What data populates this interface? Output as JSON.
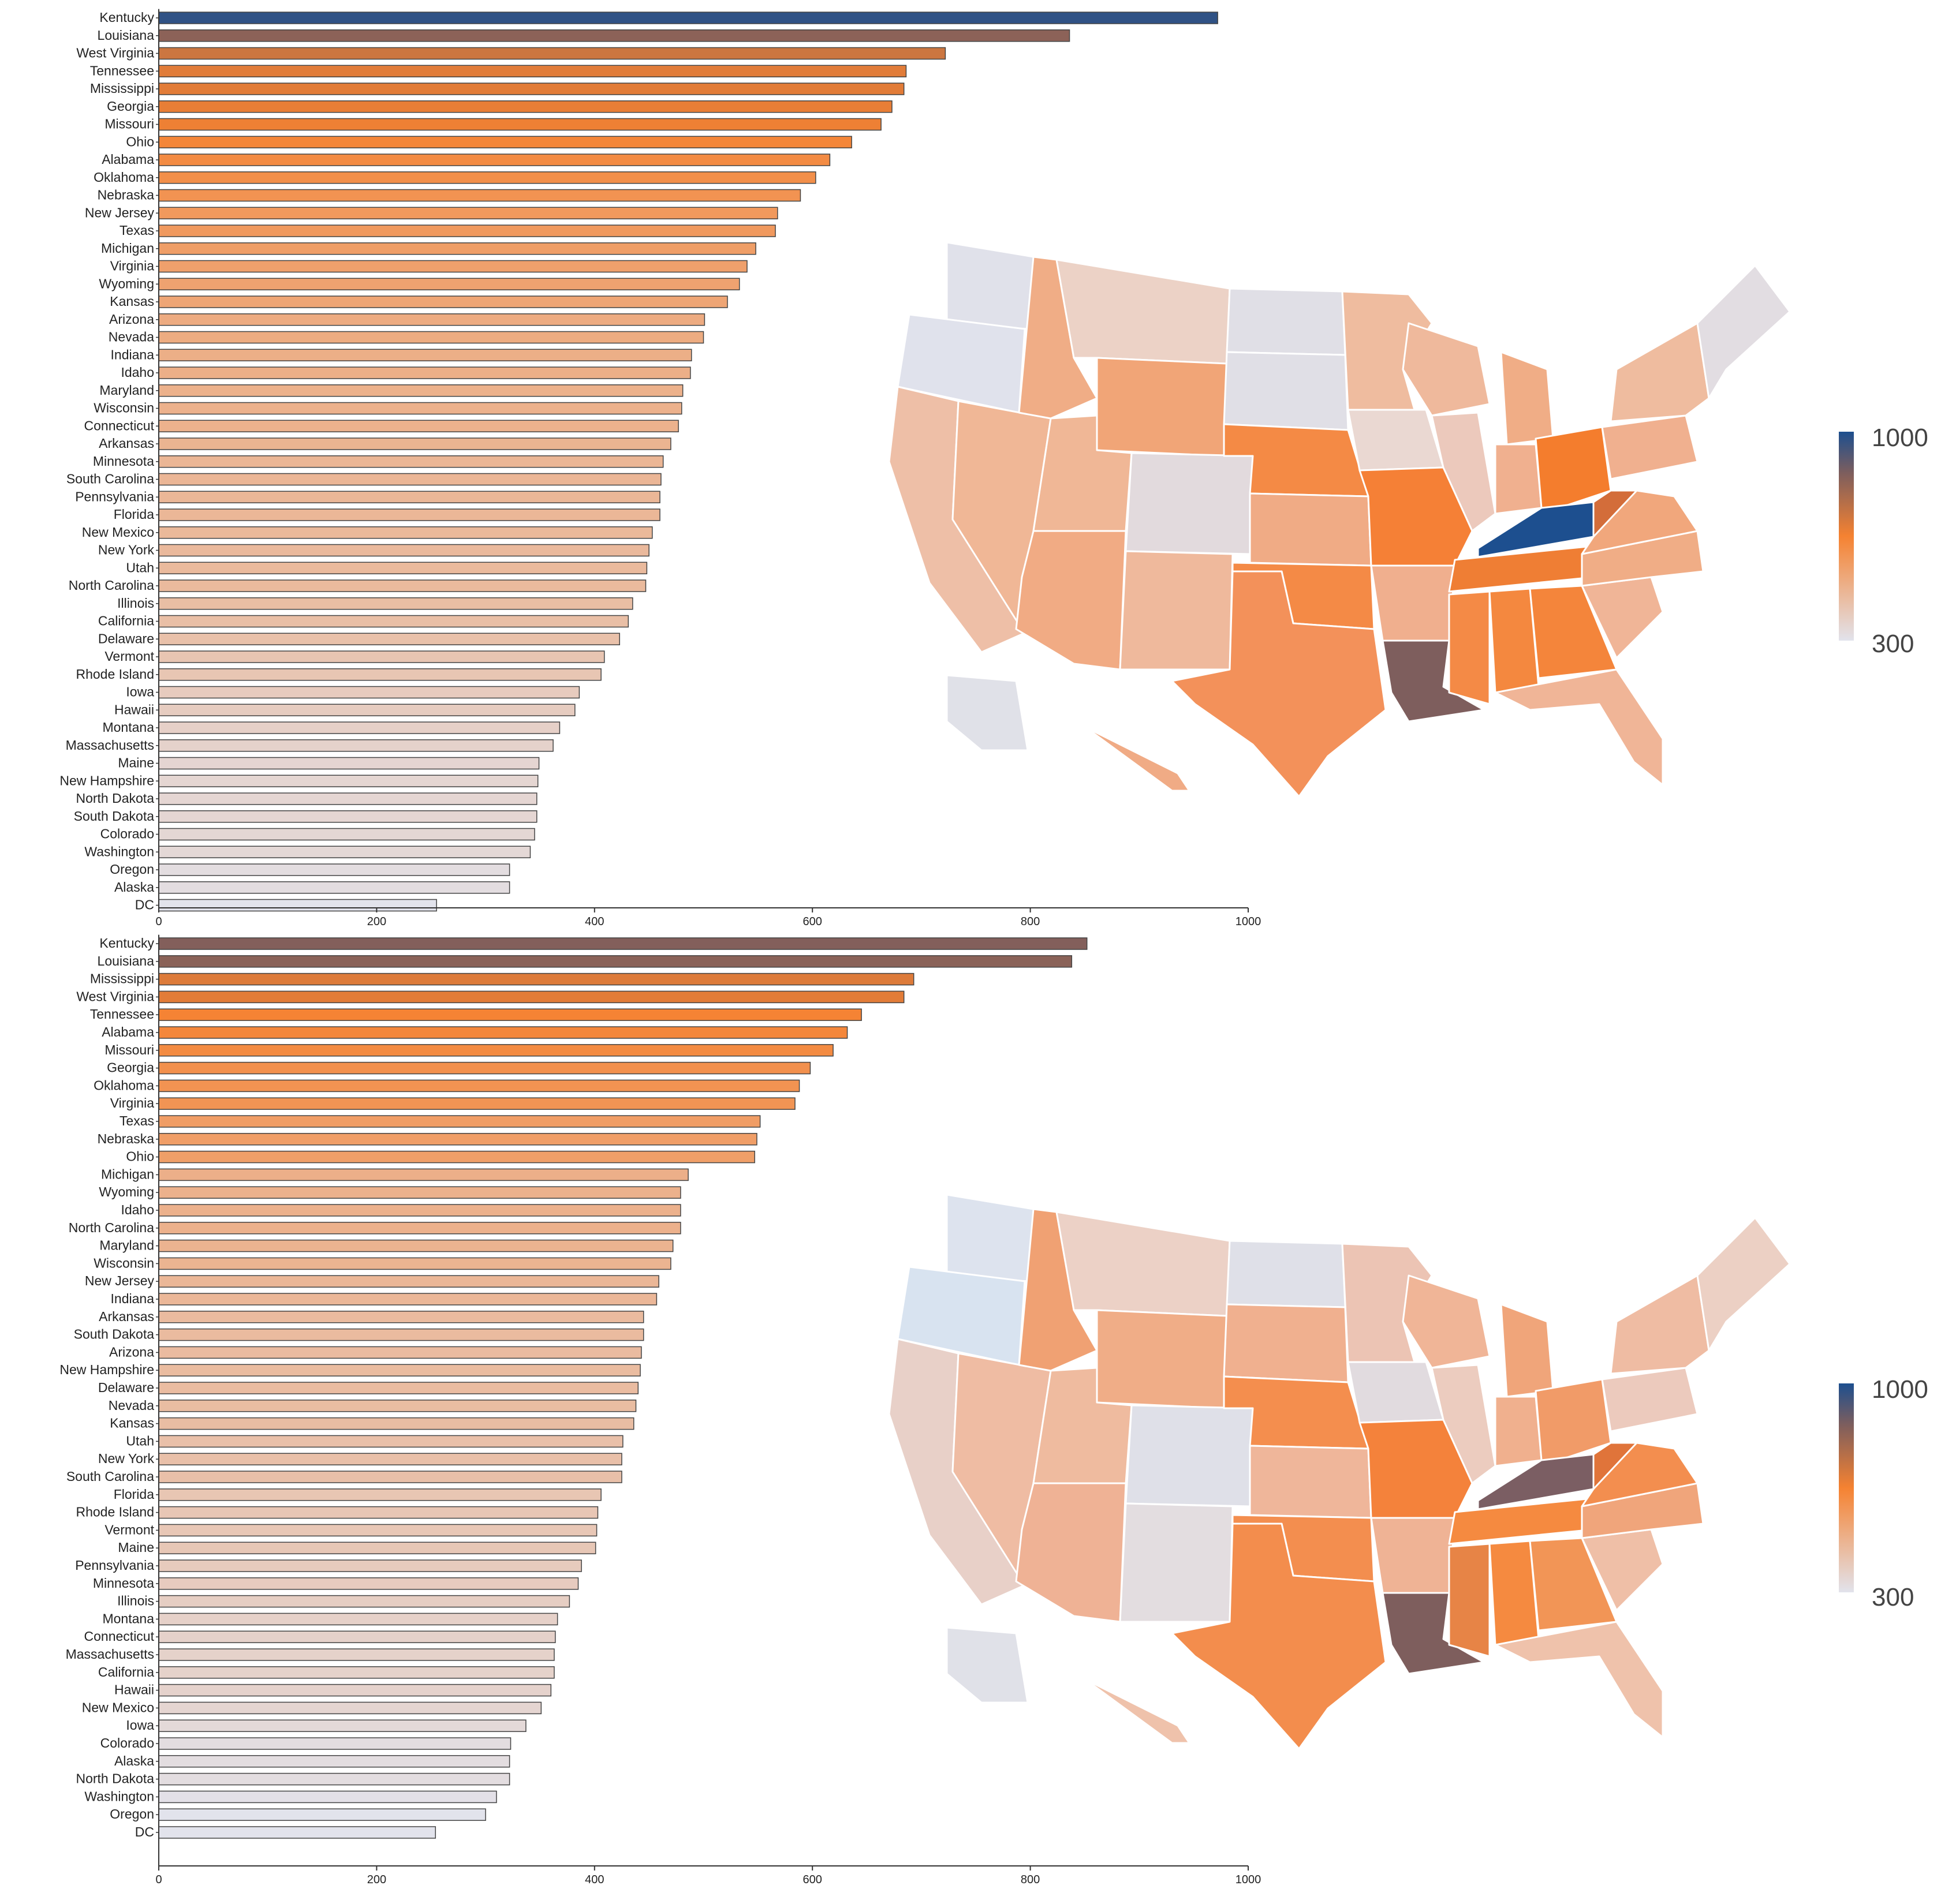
{
  "legend_colors": {
    "low": "#e2e3ec",
    "mid": "#f58231",
    "high": "#1d4f8f",
    "brown": "#7e5e5d"
  },
  "chart_data": [
    {
      "type": "bar",
      "orientation": "horizontal",
      "panel": "top",
      "xlim": [
        0,
        1000
      ],
      "xticks": [
        "0",
        "200",
        "400",
        "600",
        "800",
        "1000"
      ],
      "legend": {
        "min": "300",
        "max": "1000"
      },
      "categories": [
        "Kentucky",
        "Louisiana",
        "West Virginia",
        "Tennessee",
        "Mississippi",
        "Georgia",
        "Missouri",
        "Ohio",
        "Alabama",
        "Oklahoma",
        "Nebraska",
        "New Jersey",
        "Texas",
        "Michigan",
        "Virginia",
        "Wyoming",
        "Kansas",
        "Arizona",
        "Nevada",
        "Indiana",
        "Idaho",
        "Maryland",
        "Wisconsin",
        "Connecticut",
        "Arkansas",
        "Minnesota",
        "South Carolina",
        "Pennsylvania",
        "Florida",
        "New Mexico",
        "New York",
        "Utah",
        "North Carolina",
        "Illinois",
        "California",
        "Delaware",
        "Vermont",
        "Rhode Island",
        "Iowa",
        "Hawaii",
        "Montana",
        "Massachusetts",
        "Maine",
        "New Hampshire",
        "North Dakota",
        "South Dakota",
        "Colorado",
        "Washington",
        "Oregon",
        "Alaska",
        "DC"
      ],
      "values": [
        972,
        836,
        722,
        686,
        684,
        673,
        663,
        636,
        616,
        603,
        589,
        568,
        566,
        548,
        540,
        533,
        522,
        501,
        500,
        489,
        488,
        481,
        480,
        477,
        470,
        463,
        461,
        460,
        460,
        453,
        450,
        448,
        447,
        435,
        431,
        423,
        409,
        406,
        386,
        382,
        368,
        362,
        349,
        348,
        347,
        347,
        345,
        341,
        322,
        322,
        255
      ]
    },
    {
      "type": "bar",
      "orientation": "horizontal",
      "panel": "bottom",
      "xlim": [
        0,
        1000
      ],
      "xticks": [
        "0",
        "200",
        "400",
        "600",
        "800",
        "1000"
      ],
      "legend": {
        "min": "300",
        "max": "1000"
      },
      "categories": [
        "Kentucky",
        "Louisiana",
        "Mississippi",
        "West Virginia",
        "Tennessee",
        "Alabama",
        "Missouri",
        "Georgia",
        "Oklahoma",
        "Virginia",
        "Texas",
        "Nebraska",
        "Ohio",
        "Michigan",
        "Wyoming",
        "Idaho",
        "North Carolina",
        "Maryland",
        "Wisconsin",
        "New Jersey",
        "Indiana",
        "Arkansas",
        "South Dakota",
        "Arizona",
        "New Hampshire",
        "Delaware",
        "Nevada",
        "Kansas",
        "Utah",
        "New York",
        "South Carolina",
        "Florida",
        "Rhode Island",
        "Vermont",
        "Maine",
        "Pennsylvania",
        "Minnesota",
        "Illinois",
        "Montana",
        "Connecticut",
        "Massachusetts",
        "California",
        "Hawaii",
        "New Mexico",
        "Iowa",
        "Colorado",
        "Alaska",
        "North Dakota",
        "Washington",
        "Oregon",
        "DC"
      ],
      "values": [
        852,
        838,
        693,
        684,
        645,
        632,
        619,
        598,
        588,
        584,
        552,
        549,
        547,
        486,
        479,
        479,
        479,
        472,
        470,
        459,
        457,
        445,
        445,
        443,
        442,
        440,
        438,
        436,
        426,
        425,
        425,
        406,
        403,
        402,
        401,
        388,
        385,
        377,
        366,
        364,
        363,
        363,
        360,
        351,
        337,
        323,
        322,
        322,
        310,
        300,
        254
      ]
    }
  ]
}
